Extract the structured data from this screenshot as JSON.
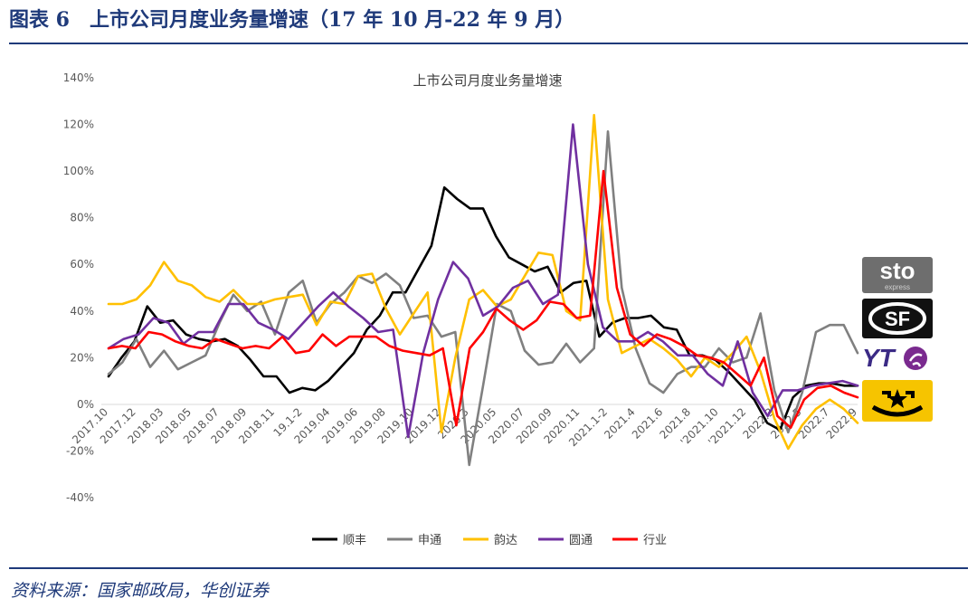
{
  "header": {
    "label": "图表 6",
    "title": "上市公司月度业务量增速（17 年 10 月-22 年 9 月）"
  },
  "source": "资料来源：国家邮政局，华创证券",
  "colors": {
    "brand": "#1f3a7a",
    "shunfeng": "#000000",
    "shentong": "#808080",
    "yunda": "#ffc000",
    "yuantong": "#7030a0",
    "industry": "#ff0000"
  },
  "logos": {
    "sto": "sto",
    "sto_sub": "express",
    "sf": "SF",
    "yto": "YT"
  },
  "chart_data": {
    "type": "line",
    "title": "上市公司月度业务量增速",
    "xlabel": "",
    "ylabel": "",
    "ylim": [
      -40,
      140
    ],
    "yticks": [
      "140%",
      "120%",
      "100%",
      "80%",
      "60%",
      "40%",
      "20%",
      "0%",
      "-20%",
      "-40%"
    ],
    "ytick_values": [
      140,
      120,
      100,
      80,
      60,
      40,
      20,
      0,
      -20,
      -40
    ],
    "x_tick_labels": [
      "2017.10",
      "2017.12",
      "2018.03",
      "2018.05",
      "2018.07",
      "2018.09",
      "2018.11",
      "19.1-2",
      "2019.04",
      "2019.06",
      "2019.08",
      "2019.10",
      "2019.12",
      "2020.3",
      "2020.05",
      "2020.07",
      "2020.09",
      "2020.11",
      "2021.1-2",
      "2021.4",
      "2021.6",
      "2021.8",
      "'2021.10",
      "'2021.12",
      "2022.3",
      "2022.5",
      "2022.7",
      "2022.9"
    ],
    "legend_position": "bottom",
    "series": [
      {
        "name": "顺丰",
        "color": "#000000",
        "values": [
          12,
          20,
          27,
          42,
          35,
          36,
          30,
          28,
          27,
          28,
          25,
          19,
          12,
          12,
          5,
          7,
          6,
          10,
          16,
          22,
          32,
          38,
          48,
          48,
          58,
          68,
          93,
          88,
          84,
          84,
          72,
          63,
          60,
          57,
          59,
          48,
          52,
          53,
          29,
          35,
          37,
          37,
          38,
          33,
          32,
          21,
          21,
          19,
          14,
          8,
          2,
          -8,
          -11,
          3,
          8,
          9,
          9,
          8,
          8
        ]
      },
      {
        "name": "申通",
        "color": "#808080",
        "values": [
          13,
          18,
          28,
          16,
          23,
          15,
          18,
          21,
          35,
          47,
          40,
          44,
          30,
          48,
          53,
          35,
          43,
          48,
          55,
          52,
          56,
          51,
          37,
          38,
          29,
          31,
          -26,
          8,
          43,
          40,
          23,
          17,
          18,
          26,
          18,
          24,
          117,
          50,
          24,
          9,
          5,
          13,
          16,
          16,
          24,
          18,
          20,
          39,
          6,
          -12,
          5,
          31,
          34,
          34,
          22
        ]
      },
      {
        "name": "韵达",
        "color": "#ffc000",
        "values": [
          43,
          43,
          45,
          51,
          61,
          53,
          51,
          46,
          44,
          49,
          43,
          43,
          45,
          46,
          47,
          34,
          44,
          43,
          55,
          56,
          41,
          30,
          39,
          48,
          -12,
          20,
          45,
          49,
          42,
          45,
          55,
          65,
          64,
          40,
          36,
          124,
          45,
          22,
          25,
          28,
          24,
          19,
          12,
          20,
          16,
          22,
          29,
          14,
          -6,
          -19,
          -9,
          -2,
          2,
          -2,
          -8
        ]
      },
      {
        "name": "圆通",
        "color": "#7030a0",
        "values": [
          24,
          28,
          30,
          37,
          35,
          26,
          31,
          31,
          43,
          43,
          35,
          32,
          28,
          35,
          42,
          48,
          42,
          37,
          31,
          32,
          -14,
          22,
          45,
          61,
          54,
          38,
          42,
          50,
          53,
          43,
          47,
          120,
          60,
          33,
          27,
          27,
          31,
          27,
          21,
          21,
          13,
          8,
          27,
          5,
          -5,
          6,
          6,
          8,
          9,
          10,
          8
        ]
      },
      {
        "name": "行业",
        "color": "#ff0000",
        "values": [
          24,
          25,
          24,
          31,
          30,
          27,
          25,
          24,
          28,
          26,
          24,
          25,
          24,
          29,
          22,
          23,
          30,
          25,
          29,
          29,
          29,
          25,
          23,
          22,
          21,
          24,
          -9,
          24,
          31,
          41,
          36,
          32,
          36,
          44,
          43,
          37,
          38,
          100,
          50,
          30,
          25,
          30,
          28,
          25,
          21,
          20,
          18,
          13,
          8,
          20,
          -5,
          -10,
          2,
          7,
          8,
          5,
          3
        ]
      }
    ]
  }
}
